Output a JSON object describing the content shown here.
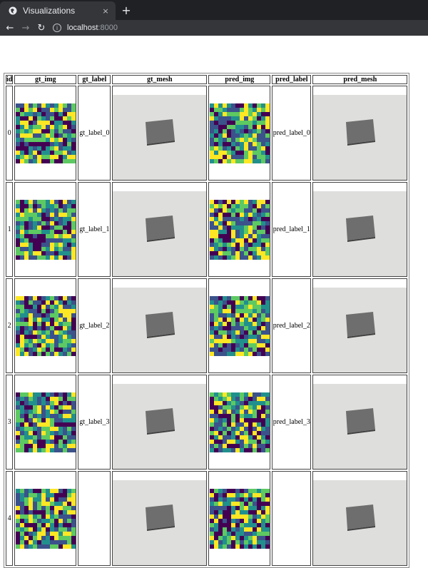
{
  "browser": {
    "tab_title": "Visualizations",
    "tab_close": "×",
    "new_tab": "+",
    "url_host": "localhost",
    "url_port": ":8000",
    "back": "←",
    "forward": "→",
    "reload": "↻",
    "info": "i"
  },
  "table": {
    "headers": [
      "id",
      "gt_img",
      "gt_label",
      "gt_mesh",
      "pred_img",
      "pred_label",
      "pred_mesh"
    ],
    "rows": [
      {
        "id": "0",
        "gt_label": "gt_label_0",
        "pred_label": "pred_label_0"
      },
      {
        "id": "1",
        "gt_label": "gt_label_1",
        "pred_label": "pred_label_1"
      },
      {
        "id": "2",
        "gt_label": "gt_label_2",
        "pred_label": "pred_label_2"
      },
      {
        "id": "3",
        "gt_label": "gt_label_3",
        "pred_label": "pred_label_3"
      },
      {
        "id": "4",
        "gt_label": "",
        "pred_label": ""
      }
    ]
  },
  "colors": {
    "viridis": [
      "#440154",
      "#3b528b",
      "#21908d",
      "#5dc962",
      "#fde725"
    ],
    "mesh_bg": "#dededc",
    "mesh_plate": "#6e6e6e"
  }
}
